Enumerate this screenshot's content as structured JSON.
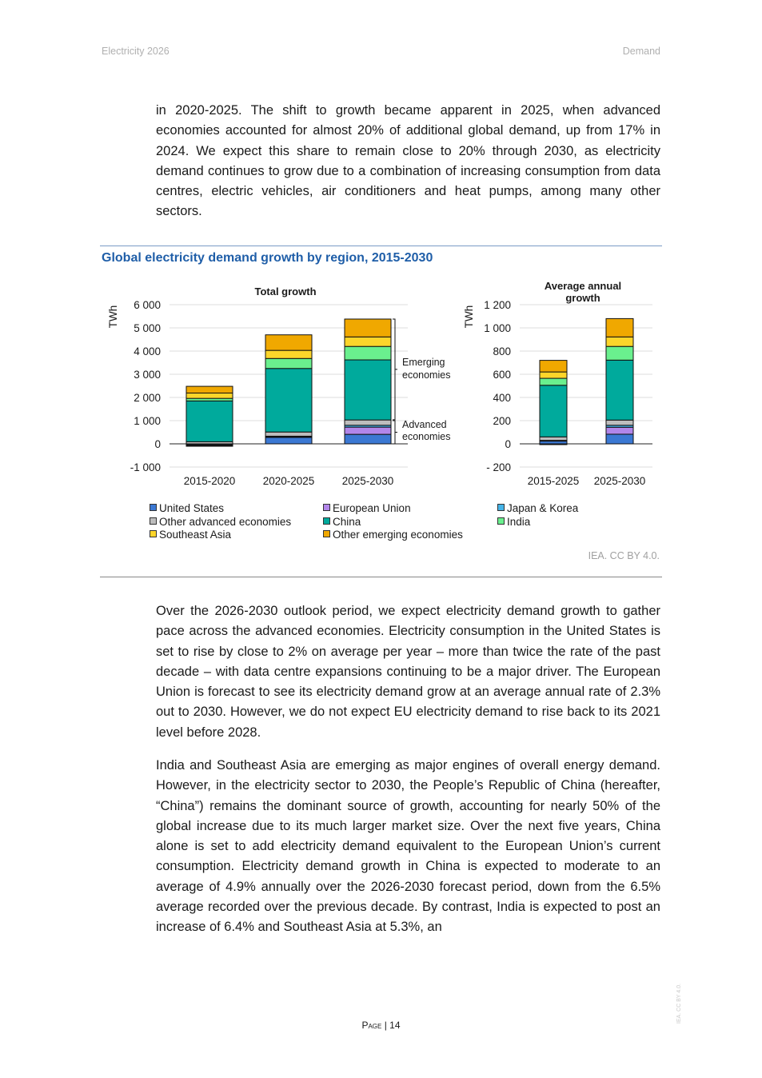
{
  "header": {
    "left": "Electricity 2026",
    "right": "Demand"
  },
  "paragraphs": [
    "in 2020-2025. The shift to growth became apparent in 2025, when advanced economies accounted for almost 20% of additional global demand, up from 17% in 2024. We expect this share to remain close to 20% through 2030, as electricity demand continues to grow due to a combination of increasing consumption from data centres, electric vehicles, air conditioners and heat pumps, among many other sectors.",
    "Over the 2026-2030 outlook period, we expect electricity demand growth to gather pace across the advanced economies. Electricity consumption in the United States is set to rise by close to 2% on average per year – more than twice the rate of the past decade – with data centre expansions continuing to be a major driver. The European Union is forecast to see its electricity demand grow at an average annual rate of 2.3% out to 2030. However, we do not expect EU electricity demand to rise back to its 2021 level before 2028.",
    "India and Southeast Asia are emerging as major engines of overall energy demand. However, in the electricity sector to 2030, the People’s Republic of China (hereafter, “China”) remains the dominant source of growth, accounting for nearly 50% of the global increase due to its much larger market size. Over the next five years, China alone is set to add electricity demand equivalent to the European Union’s current consumption. Electricity demand growth in China is expected to moderate to an average of 4.9% annually over the 2026-2030 forecast period, down from the 6.5% average recorded over the previous decade. By contrast, India is expected to post an increase of 6.4% and Southeast Asia at 5.3%, an"
  ],
  "figure": {
    "title": "Global electricity demand growth by region, 2015-2030",
    "credit": "IEA. CC BY 4.0."
  },
  "footer": {
    "page_label": "Page",
    "page_number": "14",
    "side_credit": "IEA. CC BY 4.0."
  },
  "chart_data": [
    {
      "type": "bar",
      "stacked": true,
      "title": "Total  growth",
      "ylabel": "TWh",
      "ylim": [
        -1000,
        6000
      ],
      "yticks": [
        "-1 000",
        "0",
        "1 000",
        "2 000",
        "3 000",
        "4 000",
        "5 000",
        "6 000"
      ],
      "categories": [
        "2015-2020",
        "2020-2025",
        "2025-2030"
      ],
      "annotations": [
        "Emerging economies",
        "Advanced economies"
      ],
      "series": [
        {
          "name": "United States",
          "color": "#3b78d3",
          "values": [
            -40,
            300,
            410
          ]
        },
        {
          "name": "European Union",
          "color": "#b286ea",
          "values": [
            -30,
            10,
            310
          ]
        },
        {
          "name": "Japan & Korea",
          "color": "#45b4e8",
          "values": [
            -20,
            20,
            80
          ]
        },
        {
          "name": "Other advanced economies",
          "color": "#bdbdbd",
          "values": [
            90,
            180,
            230
          ]
        },
        {
          "name": "China",
          "color": "#00aa9c",
          "values": [
            1760,
            2740,
            2590
          ]
        },
        {
          "name": "India",
          "color": "#6af08e",
          "values": [
            110,
            430,
            580
          ]
        },
        {
          "name": "Southeast Asia",
          "color": "#fdd52a",
          "values": [
            230,
            350,
            410
          ]
        },
        {
          "name": "Other emerging economies",
          "color": "#f0a800",
          "values": [
            290,
            670,
            770
          ]
        }
      ]
    },
    {
      "type": "bar",
      "stacked": true,
      "title": "Average annual growth",
      "ylabel": "TWh",
      "ylim": [
        -200,
        1200
      ],
      "yticks": [
        "- 200",
        "0",
        "200",
        "400",
        "600",
        "800",
        "1 000",
        "1 200"
      ],
      "categories": [
        "2015-2025",
        "2025-2030"
      ],
      "series": [
        {
          "name": "United States",
          "color": "#3b78d3",
          "values": [
            25,
            83
          ]
        },
        {
          "name": "European Union",
          "color": "#b286ea",
          "values": [
            -5,
            60
          ]
        },
        {
          "name": "Japan & Korea",
          "color": "#45b4e8",
          "values": [
            5,
            17
          ]
        },
        {
          "name": "Other advanced economies",
          "color": "#bdbdbd",
          "values": [
            30,
            45
          ]
        },
        {
          "name": "China",
          "color": "#00aa9c",
          "values": [
            445,
            517
          ]
        },
        {
          "name": "India",
          "color": "#6af08e",
          "values": [
            60,
            118
          ]
        },
        {
          "name": "Southeast Asia",
          "color": "#fdd52a",
          "values": [
            55,
            82
          ]
        },
        {
          "name": "Other emerging economies",
          "color": "#f0a800",
          "values": [
            100,
            158
          ]
        }
      ]
    }
  ]
}
